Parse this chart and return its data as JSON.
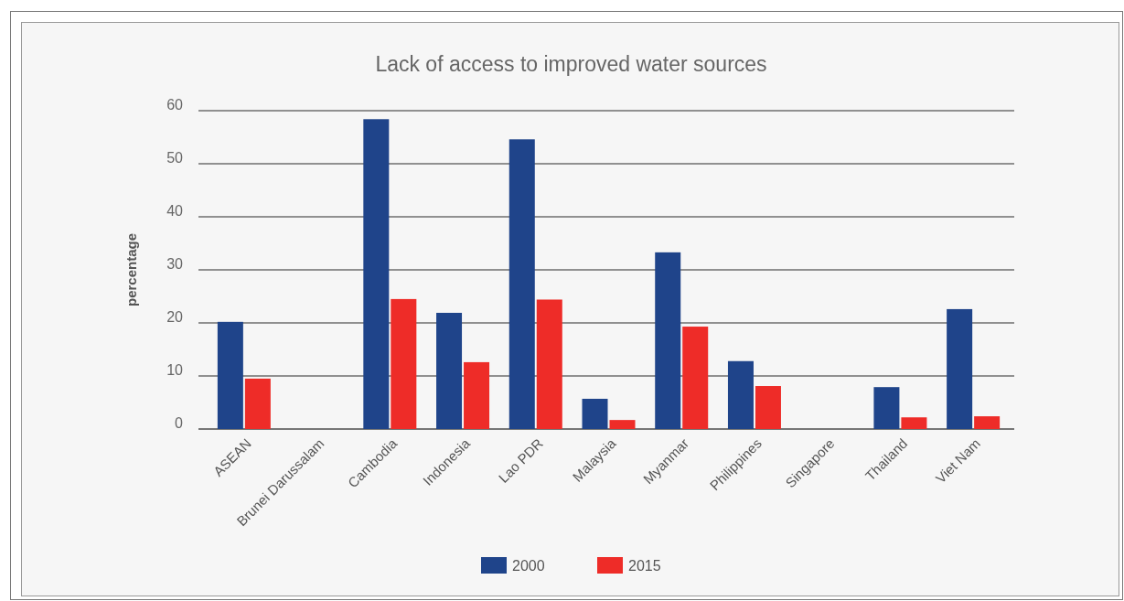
{
  "chart_data": {
    "type": "bar",
    "title": "Lack of access to improved water sources",
    "ylabel": "percentage",
    "categories": [
      "ASEAN",
      "Brunei Darussalam",
      "Cambodia",
      "Indonesia",
      "Lao PDR",
      "Malaysia",
      "Myanmar",
      "Philippines",
      "Singapore",
      "Thailand",
      "Viet Nam"
    ],
    "series": [
      {
        "name": "2000",
        "color": "#1f448a",
        "values": [
          20.2,
          null,
          58.4,
          21.9,
          54.6,
          5.7,
          33.3,
          12.8,
          null,
          7.9,
          22.6
        ]
      },
      {
        "name": "2015",
        "color": "#ee2c28",
        "values": [
          9.5,
          null,
          24.5,
          12.6,
          24.4,
          1.7,
          19.3,
          8.1,
          null,
          2.2,
          2.4
        ]
      }
    ],
    "ylim": [
      0,
      60
    ],
    "yticks": [
      0,
      10,
      20,
      30,
      40,
      50,
      60
    ],
    "grid": "y",
    "legend": "bottom"
  }
}
